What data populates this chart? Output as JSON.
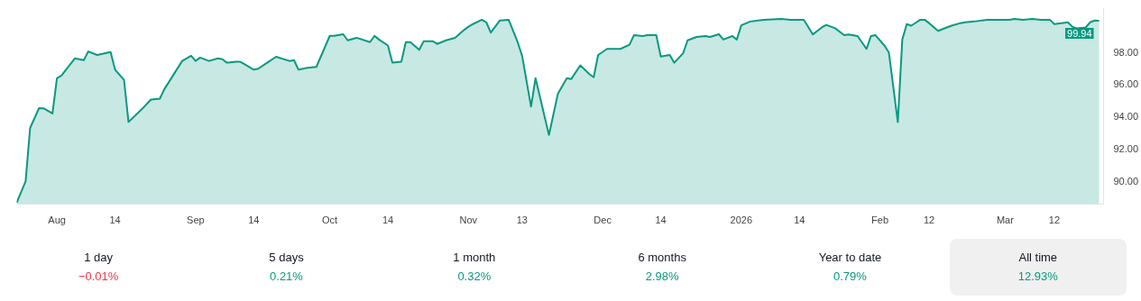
{
  "chart_data": {
    "type": "line",
    "x": [
      "2025-07-23",
      "2025-07-25",
      "2025-07-26",
      "2025-07-28",
      "2025-07-29",
      "2025-07-31",
      "2025-08-01",
      "2025-08-02",
      "2025-08-05",
      "2025-08-07",
      "2025-08-08",
      "2025-08-10",
      "2025-08-13",
      "2025-08-14",
      "2025-08-16",
      "2025-08-17",
      "2025-08-20",
      "2025-08-22",
      "2025-08-24",
      "2025-08-25",
      "2025-08-29",
      "2025-08-31",
      "2025-09-01",
      "2025-09-02",
      "2025-09-04",
      "2025-09-06",
      "2025-09-07",
      "2025-09-08",
      "2025-09-10",
      "2025-09-11",
      "2025-09-12",
      "2025-09-14",
      "2025-09-15",
      "2025-09-17",
      "2025-09-19",
      "2025-09-22",
      "2025-09-23",
      "2025-09-24",
      "2025-09-26",
      "2025-09-28",
      "2025-10-01",
      "2025-10-02",
      "2025-10-04",
      "2025-10-05",
      "2025-10-07",
      "2025-10-10",
      "2025-10-11",
      "2025-10-12",
      "2025-10-14",
      "2025-10-15",
      "2025-10-17",
      "2025-10-18",
      "2025-10-19",
      "2025-10-21",
      "2025-10-22",
      "2025-10-24",
      "2025-10-25",
      "2025-10-27",
      "2025-10-29",
      "2025-10-31",
      "2025-11-01",
      "2025-11-02",
      "2025-11-04",
      "2025-11-05",
      "2025-11-06",
      "2025-11-08",
      "2025-11-10",
      "2025-11-12",
      "2025-11-13",
      "2025-11-15",
      "2025-11-16",
      "2025-11-19",
      "2025-11-21",
      "2025-11-23",
      "2025-11-24",
      "2025-11-26",
      "2025-11-28",
      "2025-11-29",
      "2025-11-30",
      "2025-12-02",
      "2025-12-05",
      "2025-12-07",
      "2025-12-08",
      "2025-12-10",
      "2025-12-11",
      "2025-12-13",
      "2025-12-14",
      "2025-12-16",
      "2025-12-17",
      "2025-12-19",
      "2025-12-20",
      "2025-12-22",
      "2025-12-24",
      "2025-12-25",
      "2025-12-27",
      "2025-12-28",
      "2025-12-30",
      "2025-12-31",
      "2026-01-01",
      "2026-01-03",
      "2026-01-06",
      "2026-01-10",
      "2026-01-12",
      "2026-01-15",
      "2026-01-17",
      "2026-01-19",
      "2026-01-20",
      "2026-01-22",
      "2026-01-24",
      "2026-01-25",
      "2026-01-27",
      "2026-01-29",
      "2026-01-30",
      "2026-01-31",
      "2026-02-02",
      "2026-02-03",
      "2026-02-05",
      "2026-02-06",
      "2026-02-07",
      "2026-02-08",
      "2026-02-10",
      "2026-02-11",
      "2026-02-12",
      "2026-02-14",
      "2026-02-17",
      "2026-02-19",
      "2026-02-20",
      "2026-02-22",
      "2026-02-25",
      "2026-03-02",
      "2026-03-03",
      "2026-03-05",
      "2026-03-07",
      "2026-03-09",
      "2026-03-11",
      "2026-03-12",
      "2026-03-15",
      "2026-03-16",
      "2026-03-17",
      "2026-03-19",
      "2026-03-20",
      "2026-03-21",
      "2026-03-22"
    ],
    "series": [
      {
        "color": "#089981",
        "values": [
          88.64,
          89.97,
          93.28,
          94.51,
          94.5,
          94.18,
          96.37,
          96.53,
          97.6,
          97.49,
          98.03,
          97.81,
          97.99,
          96.9,
          96.27,
          93.65,
          94.45,
          95.04,
          95.1,
          95.68,
          97.44,
          97.76,
          97.44,
          97.65,
          97.44,
          97.6,
          97.55,
          97.33,
          97.39,
          97.39,
          97.23,
          96.9,
          96.96,
          97.33,
          97.7,
          97.44,
          97.49,
          96.9,
          97.01,
          97.07,
          99.0,
          99.0,
          99.1,
          98.72,
          98.88,
          98.61,
          99.0,
          98.77,
          98.4,
          97.33,
          97.39,
          98.61,
          98.61,
          98.13,
          98.67,
          98.67,
          98.5,
          98.72,
          98.88,
          99.36,
          99.57,
          99.73,
          100.0,
          99.84,
          99.2,
          99.95,
          100.0,
          98.61,
          97.76,
          94.61,
          96.37,
          92.85,
          95.41,
          96.37,
          96.32,
          97.17,
          96.64,
          96.43,
          97.81,
          98.19,
          98.19,
          98.45,
          99.04,
          98.99,
          99.04,
          99.04,
          97.71,
          97.81,
          97.33,
          97.92,
          98.72,
          98.93,
          98.99,
          98.93,
          99.1,
          98.77,
          98.99,
          98.77,
          99.65,
          99.89,
          100.0,
          100.05,
          100.0,
          100.0,
          99.09,
          99.52,
          99.68,
          99.47,
          99.04,
          99.09,
          98.99,
          98.19,
          98.99,
          99.04,
          98.4,
          97.97,
          93.65,
          98.77,
          99.73,
          99.63,
          100.0,
          100.0,
          99.79,
          99.31,
          99.63,
          99.79,
          99.84,
          99.89,
          100.0,
          100.0,
          100.05,
          100.0,
          100.05,
          100.0,
          100.0,
          99.73,
          99.84,
          99.57,
          99.47,
          99.52,
          99.84,
          99.95,
          99.94
        ]
      }
    ],
    "xlim": [
      "2025-07-23",
      "2026-03-23"
    ],
    "xticks": [
      {
        "value": "2025-08-01",
        "label": "Aug"
      },
      {
        "value": "2025-08-14",
        "label": "14"
      },
      {
        "value": "2025-09-01",
        "label": "Sep"
      },
      {
        "value": "2025-09-14",
        "label": "14"
      },
      {
        "value": "2025-10-01",
        "label": "Oct"
      },
      {
        "value": "2025-10-14",
        "label": "14"
      },
      {
        "value": "2025-11-01",
        "label": "Nov"
      },
      {
        "value": "2025-11-13",
        "label": "13"
      },
      {
        "value": "2025-12-01",
        "label": "Dec"
      },
      {
        "value": "2025-12-14",
        "label": "14"
      },
      {
        "value": "2026-01-01",
        "label": "2026"
      },
      {
        "value": "2026-01-14",
        "label": "14"
      },
      {
        "value": "2026-02-01",
        "label": "Feb"
      },
      {
        "value": "2026-02-12",
        "label": "12"
      },
      {
        "value": "2026-03-01",
        "label": "Mar"
      },
      {
        "value": "2026-03-12",
        "label": "12"
      }
    ],
    "ylim": [
      88.55,
      100.75
    ],
    "yticks": [
      {
        "value": 90,
        "label": "90.00"
      },
      {
        "value": 92,
        "label": "92.00"
      },
      {
        "value": 94,
        "label": "94.00"
      },
      {
        "value": 96,
        "label": "96.00"
      },
      {
        "value": 98,
        "label": "98.00"
      }
    ],
    "grid": false,
    "annotations": [
      {
        "text": "99.94",
        "x": "2026-03-22",
        "y": 99.94
      },
      "1 day",
      "−0.01%",
      "5 days",
      "0.21%",
      "1 month",
      "0.32%",
      "6 months",
      "2.98%",
      "Year to date",
      "0.79%",
      "All time",
      "12.93%"
    ]
  }
}
